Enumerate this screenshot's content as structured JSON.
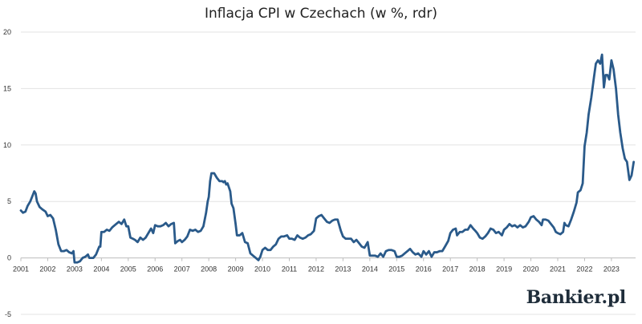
{
  "chart_data": {
    "type": "line",
    "title": "Inflacja CPI w Czechach (w %, rdr)",
    "ylim": [
      -5,
      20
    ],
    "yticks": [
      -5,
      0,
      5,
      10,
      15,
      20
    ],
    "xlim": [
      2001,
      2023.9
    ],
    "xticks": [
      "2001",
      "2002",
      "2003",
      "2004",
      "2005",
      "2006",
      "2007",
      "2008",
      "2009",
      "2010",
      "2011",
      "2012",
      "2013",
      "2014",
      "2015",
      "2016",
      "2017",
      "2018",
      "2019",
      "2020",
      "2021",
      "2022",
      "2023"
    ],
    "grid": "horizontal",
    "series": [
      {
        "color": "#2a5a8a",
        "points": [
          [
            2001.0,
            4.2
          ],
          [
            2001.08,
            4.0
          ],
          [
            2001.17,
            4.1
          ],
          [
            2001.25,
            4.6
          ],
          [
            2001.35,
            5.0
          ],
          [
            2001.45,
            5.6
          ],
          [
            2001.5,
            5.9
          ],
          [
            2001.55,
            5.7
          ],
          [
            2001.6,
            5.0
          ],
          [
            2001.7,
            4.5
          ],
          [
            2001.8,
            4.3
          ],
          [
            2001.92,
            4.1
          ],
          [
            2002.0,
            3.7
          ],
          [
            2002.1,
            3.8
          ],
          [
            2002.2,
            3.5
          ],
          [
            2002.3,
            2.5
          ],
          [
            2002.4,
            1.2
          ],
          [
            2002.5,
            0.6
          ],
          [
            2002.6,
            0.6
          ],
          [
            2002.7,
            0.7
          ],
          [
            2002.8,
            0.5
          ],
          [
            2002.9,
            0.4
          ],
          [
            2002.96,
            0.6
          ],
          [
            2003.0,
            -0.4
          ],
          [
            2003.1,
            -0.4
          ],
          [
            2003.2,
            -0.3
          ],
          [
            2003.3,
            0.0
          ],
          [
            2003.4,
            0.1
          ],
          [
            2003.5,
            0.3
          ],
          [
            2003.55,
            0.0
          ],
          [
            2003.7,
            0.0
          ],
          [
            2003.8,
            0.3
          ],
          [
            2003.92,
            1.0
          ],
          [
            2003.96,
            1.0
          ],
          [
            2004.0,
            2.3
          ],
          [
            2004.1,
            2.3
          ],
          [
            2004.2,
            2.5
          ],
          [
            2004.3,
            2.4
          ],
          [
            2004.4,
            2.7
          ],
          [
            2004.55,
            3.0
          ],
          [
            2004.65,
            3.2
          ],
          [
            2004.75,
            3.0
          ],
          [
            2004.85,
            3.4
          ],
          [
            2004.93,
            2.8
          ],
          [
            2005.0,
            2.8
          ],
          [
            2005.08,
            1.8
          ],
          [
            2005.17,
            1.7
          ],
          [
            2005.25,
            1.6
          ],
          [
            2005.35,
            1.4
          ],
          [
            2005.45,
            1.8
          ],
          [
            2005.55,
            1.6
          ],
          [
            2005.65,
            1.8
          ],
          [
            2005.75,
            2.2
          ],
          [
            2005.85,
            2.6
          ],
          [
            2005.93,
            2.2
          ],
          [
            2006.0,
            2.9
          ],
          [
            2006.1,
            2.8
          ],
          [
            2006.2,
            2.8
          ],
          [
            2006.3,
            2.9
          ],
          [
            2006.4,
            3.1
          ],
          [
            2006.5,
            2.8
          ],
          [
            2006.6,
            3.0
          ],
          [
            2006.7,
            3.1
          ],
          [
            2006.75,
            1.3
          ],
          [
            2006.85,
            1.5
          ],
          [
            2006.93,
            1.6
          ],
          [
            2007.0,
            1.4
          ],
          [
            2007.1,
            1.6
          ],
          [
            2007.2,
            1.9
          ],
          [
            2007.3,
            2.5
          ],
          [
            2007.4,
            2.4
          ],
          [
            2007.5,
            2.5
          ],
          [
            2007.6,
            2.3
          ],
          [
            2007.7,
            2.4
          ],
          [
            2007.8,
            2.8
          ],
          [
            2007.9,
            4.0
          ],
          [
            2007.96,
            5.0
          ],
          [
            2008.0,
            5.4
          ],
          [
            2008.05,
            6.8
          ],
          [
            2008.1,
            7.5
          ],
          [
            2008.2,
            7.5
          ],
          [
            2008.3,
            7.1
          ],
          [
            2008.4,
            6.8
          ],
          [
            2008.5,
            6.8
          ],
          [
            2008.55,
            6.7
          ],
          [
            2008.6,
            6.8
          ],
          [
            2008.65,
            6.5
          ],
          [
            2008.7,
            6.6
          ],
          [
            2008.8,
            5.9
          ],
          [
            2008.85,
            4.8
          ],
          [
            2008.92,
            4.4
          ],
          [
            2009.0,
            3.0
          ],
          [
            2009.05,
            2.0
          ],
          [
            2009.15,
            2.0
          ],
          [
            2009.25,
            2.2
          ],
          [
            2009.35,
            1.4
          ],
          [
            2009.45,
            1.3
          ],
          [
            2009.55,
            0.4
          ],
          [
            2009.65,
            0.2
          ],
          [
            2009.75,
            0.0
          ],
          [
            2009.85,
            -0.2
          ],
          [
            2009.92,
            0.1
          ],
          [
            2010.0,
            0.7
          ],
          [
            2010.1,
            0.9
          ],
          [
            2010.2,
            0.7
          ],
          [
            2010.3,
            0.7
          ],
          [
            2010.4,
            1.0
          ],
          [
            2010.5,
            1.2
          ],
          [
            2010.6,
            1.7
          ],
          [
            2010.7,
            1.9
          ],
          [
            2010.8,
            1.9
          ],
          [
            2010.92,
            2.0
          ],
          [
            2011.0,
            1.7
          ],
          [
            2011.1,
            1.7
          ],
          [
            2011.2,
            1.6
          ],
          [
            2011.3,
            2.0
          ],
          [
            2011.4,
            1.8
          ],
          [
            2011.5,
            1.7
          ],
          [
            2011.6,
            1.8
          ],
          [
            2011.7,
            2.0
          ],
          [
            2011.8,
            2.1
          ],
          [
            2011.92,
            2.4
          ],
          [
            2012.0,
            3.5
          ],
          [
            2012.1,
            3.7
          ],
          [
            2012.2,
            3.8
          ],
          [
            2012.3,
            3.5
          ],
          [
            2012.4,
            3.2
          ],
          [
            2012.5,
            3.1
          ],
          [
            2012.6,
            3.3
          ],
          [
            2012.7,
            3.4
          ],
          [
            2012.8,
            3.4
          ],
          [
            2012.92,
            2.4
          ],
          [
            2013.0,
            1.9
          ],
          [
            2013.1,
            1.7
          ],
          [
            2013.2,
            1.7
          ],
          [
            2013.3,
            1.7
          ],
          [
            2013.4,
            1.4
          ],
          [
            2013.5,
            1.6
          ],
          [
            2013.6,
            1.3
          ],
          [
            2013.7,
            1.0
          ],
          [
            2013.8,
            0.9
          ],
          [
            2013.92,
            1.4
          ],
          [
            2014.0,
            0.2
          ],
          [
            2014.1,
            0.2
          ],
          [
            2014.2,
            0.2
          ],
          [
            2014.3,
            0.1
          ],
          [
            2014.4,
            0.4
          ],
          [
            2014.5,
            0.1
          ],
          [
            2014.6,
            0.6
          ],
          [
            2014.7,
            0.7
          ],
          [
            2014.8,
            0.7
          ],
          [
            2014.92,
            0.6
          ],
          [
            2015.0,
            0.1
          ],
          [
            2015.1,
            0.1
          ],
          [
            2015.2,
            0.2
          ],
          [
            2015.3,
            0.4
          ],
          [
            2015.4,
            0.6
          ],
          [
            2015.5,
            0.8
          ],
          [
            2015.6,
            0.5
          ],
          [
            2015.7,
            0.3
          ],
          [
            2015.8,
            0.4
          ],
          [
            2015.92,
            0.1
          ],
          [
            2016.0,
            0.6
          ],
          [
            2016.1,
            0.3
          ],
          [
            2016.2,
            0.6
          ],
          [
            2016.3,
            0.1
          ],
          [
            2016.4,
            0.5
          ],
          [
            2016.5,
            0.5
          ],
          [
            2016.6,
            0.6
          ],
          [
            2016.7,
            0.6
          ],
          [
            2016.8,
            1.0
          ],
          [
            2016.92,
            1.5
          ],
          [
            2017.0,
            2.2
          ],
          [
            2017.1,
            2.5
          ],
          [
            2017.2,
            2.6
          ],
          [
            2017.25,
            2.0
          ],
          [
            2017.35,
            2.3
          ],
          [
            2017.45,
            2.3
          ],
          [
            2017.55,
            2.5
          ],
          [
            2017.65,
            2.5
          ],
          [
            2017.75,
            2.9
          ],
          [
            2017.85,
            2.6
          ],
          [
            2017.93,
            2.4
          ],
          [
            2018.0,
            2.2
          ],
          [
            2018.1,
            1.8
          ],
          [
            2018.2,
            1.7
          ],
          [
            2018.3,
            1.9
          ],
          [
            2018.4,
            2.2
          ],
          [
            2018.5,
            2.6
          ],
          [
            2018.6,
            2.5
          ],
          [
            2018.7,
            2.2
          ],
          [
            2018.8,
            2.3
          ],
          [
            2018.92,
            2.0
          ],
          [
            2019.0,
            2.5
          ],
          [
            2019.1,
            2.7
          ],
          [
            2019.2,
            3.0
          ],
          [
            2019.3,
            2.8
          ],
          [
            2019.4,
            2.9
          ],
          [
            2019.5,
            2.7
          ],
          [
            2019.6,
            2.9
          ],
          [
            2019.7,
            2.7
          ],
          [
            2019.8,
            2.8
          ],
          [
            2019.92,
            3.2
          ],
          [
            2020.0,
            3.6
          ],
          [
            2020.1,
            3.7
          ],
          [
            2020.2,
            3.4
          ],
          [
            2020.3,
            3.2
          ],
          [
            2020.4,
            2.9
          ],
          [
            2020.45,
            3.4
          ],
          [
            2020.55,
            3.4
          ],
          [
            2020.65,
            3.3
          ],
          [
            2020.75,
            3.0
          ],
          [
            2020.85,
            2.7
          ],
          [
            2020.93,
            2.3
          ],
          [
            2021.0,
            2.2
          ],
          [
            2021.1,
            2.1
          ],
          [
            2021.2,
            2.3
          ],
          [
            2021.25,
            3.1
          ],
          [
            2021.3,
            2.9
          ],
          [
            2021.4,
            2.8
          ],
          [
            2021.5,
            3.4
          ],
          [
            2021.6,
            4.1
          ],
          [
            2021.7,
            4.9
          ],
          [
            2021.75,
            5.8
          ],
          [
            2021.85,
            6.0
          ],
          [
            2021.93,
            6.6
          ],
          [
            2022.0,
            9.9
          ],
          [
            2022.08,
            11.1
          ],
          [
            2022.15,
            12.7
          ],
          [
            2022.25,
            14.2
          ],
          [
            2022.35,
            16.0
          ],
          [
            2022.42,
            17.2
          ],
          [
            2022.5,
            17.5
          ],
          [
            2022.58,
            17.2
          ],
          [
            2022.65,
            18.0
          ],
          [
            2022.72,
            15.1
          ],
          [
            2022.78,
            16.2
          ],
          [
            2022.85,
            16.2
          ],
          [
            2022.92,
            15.8
          ],
          [
            2023.0,
            17.5
          ],
          [
            2023.08,
            16.7
          ],
          [
            2023.17,
            15.0
          ],
          [
            2023.25,
            12.7
          ],
          [
            2023.33,
            11.1
          ],
          [
            2023.42,
            9.7
          ],
          [
            2023.5,
            8.8
          ],
          [
            2023.58,
            8.5
          ],
          [
            2023.67,
            6.9
          ],
          [
            2023.75,
            7.3
          ],
          [
            2023.83,
            8.5
          ]
        ]
      }
    ]
  },
  "brand": {
    "logo_text": "Bankier.pl"
  }
}
